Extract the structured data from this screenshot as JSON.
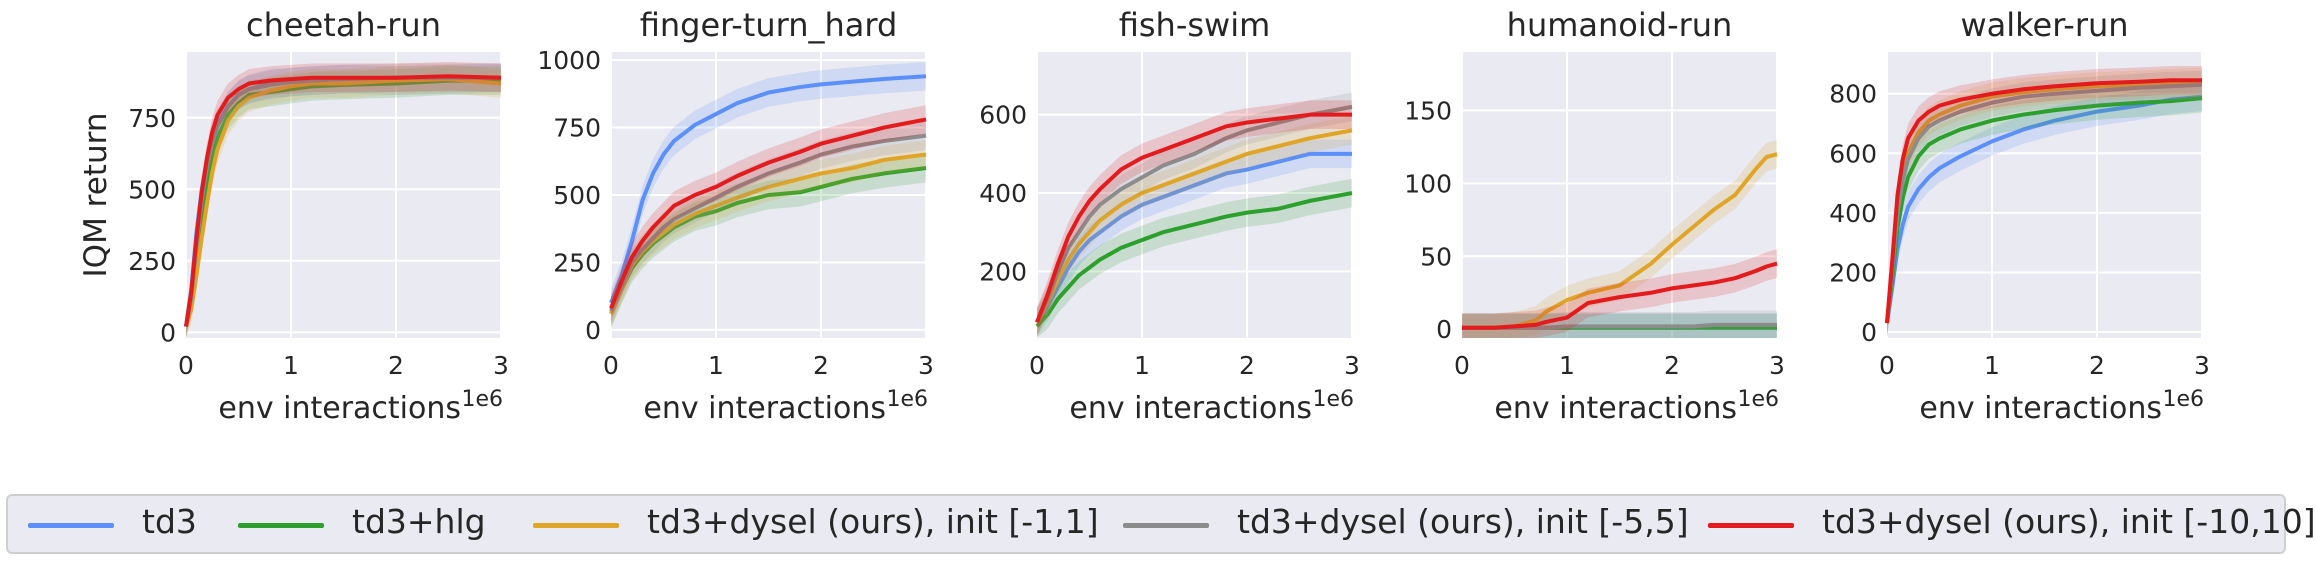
{
  "colors": {
    "td3": "#5b8ff9",
    "td3+hlg": "#2ca02c",
    "td3+dysel (ours), init [-1,1]": "#e0a526",
    "td3+dysel (ours), init [-5,5]": "#8c8c8c",
    "td3+dysel (ours), init [-10,10]": "#e41a1c",
    "panel_bg": "#eaeaf2",
    "grid": "#ffffff",
    "text": "#262626"
  },
  "legend": {
    "items": [
      {
        "label": "td3"
      },
      {
        "label": "td3+hlg"
      },
      {
        "label": "td3+dysel (ours), init [-1,1]"
      },
      {
        "label": "td3+dysel (ours), init [-5,5]"
      },
      {
        "label": "td3+dysel (ours), init [-10,10]"
      }
    ]
  },
  "chart_data": [
    {
      "type": "line",
      "title": "cheetah-run",
      "xlabel": "env interactions",
      "xscale_label": "1e6",
      "ylabel": "IQM return",
      "xlim": [
        0,
        3
      ],
      "ylim": [
        -20,
        980
      ],
      "xticks": [
        0,
        1,
        2,
        3
      ],
      "yticks": [
        0,
        250,
        500,
        750
      ],
      "grid": true,
      "x": [
        0,
        0.05,
        0.1,
        0.15,
        0.2,
        0.25,
        0.3,
        0.4,
        0.5,
        0.6,
        0.8,
        1.0,
        1.2,
        1.5,
        2.0,
        2.5,
        3.0
      ],
      "series": [
        {
          "name": "td3",
          "values": [
            20,
            150,
            350,
            500,
            600,
            680,
            730,
            790,
            830,
            850,
            870,
            875,
            880,
            885,
            880,
            885,
            890
          ]
        },
        {
          "name": "td3+hlg",
          "values": [
            20,
            100,
            250,
            400,
            520,
            610,
            680,
            760,
            800,
            830,
            840,
            850,
            860,
            865,
            870,
            880,
            880
          ]
        },
        {
          "name": "td3+dysel (ours), init [-1,1]",
          "values": [
            20,
            80,
            200,
            330,
            450,
            560,
            640,
            740,
            790,
            820,
            845,
            860,
            870,
            870,
            880,
            885,
            870
          ]
        },
        {
          "name": "td3+dysel (ours), init [-5,5]",
          "values": [
            20,
            120,
            300,
            460,
            580,
            660,
            720,
            790,
            830,
            850,
            865,
            875,
            880,
            885,
            890,
            890,
            890
          ]
        },
        {
          "name": "td3+dysel (ours), init [-10,10]",
          "values": [
            20,
            140,
            330,
            490,
            610,
            700,
            760,
            820,
            850,
            870,
            880,
            885,
            890,
            890,
            890,
            895,
            890
          ]
        }
      ]
    },
    {
      "type": "line",
      "title": "finger-turn_hard",
      "xlabel": "env interactions",
      "xscale_label": "1e6",
      "ylabel": "",
      "xlim": [
        0,
        3
      ],
      "ylim": [
        -30,
        1030
      ],
      "xticks": [
        0,
        1,
        2,
        3
      ],
      "yticks": [
        0,
        250,
        500,
        750,
        1000
      ],
      "grid": true,
      "x": [
        0,
        0.1,
        0.2,
        0.3,
        0.4,
        0.5,
        0.6,
        0.8,
        1.0,
        1.2,
        1.5,
        1.8,
        2.0,
        2.3,
        2.6,
        3.0
      ],
      "series": [
        {
          "name": "td3",
          "values": [
            100,
            200,
            330,
            480,
            580,
            650,
            700,
            760,
            800,
            840,
            880,
            900,
            910,
            920,
            930,
            940
          ]
        },
        {
          "name": "td3+hlg",
          "values": [
            60,
            150,
            230,
            280,
            320,
            350,
            380,
            420,
            440,
            470,
            500,
            510,
            530,
            560,
            580,
            600
          ]
        },
        {
          "name": "td3+dysel (ours), init [-1,1]",
          "values": [
            60,
            150,
            240,
            290,
            330,
            360,
            390,
            430,
            460,
            490,
            530,
            560,
            580,
            600,
            630,
            650
          ]
        },
        {
          "name": "td3+dysel (ours), init [-5,5]",
          "values": [
            70,
            160,
            250,
            300,
            340,
            380,
            410,
            450,
            490,
            530,
            580,
            620,
            650,
            680,
            700,
            720
          ]
        },
        {
          "name": "td3+dysel (ours), init [-10,10]",
          "values": [
            80,
            180,
            270,
            330,
            380,
            420,
            460,
            500,
            530,
            570,
            620,
            660,
            690,
            720,
            750,
            780
          ]
        }
      ]
    },
    {
      "type": "line",
      "title": "fish-swim",
      "xlabel": "env interactions",
      "xscale_label": "1e6",
      "ylabel": "",
      "xlim": [
        0,
        3
      ],
      "ylim": [
        30,
        760
      ],
      "xticks": [
        0,
        1,
        2,
        3
      ],
      "yticks": [
        200,
        400,
        600
      ],
      "grid": true,
      "x": [
        0,
        0.1,
        0.2,
        0.3,
        0.4,
        0.5,
        0.6,
        0.8,
        1.0,
        1.2,
        1.5,
        1.8,
        2.0,
        2.3,
        2.6,
        3.0
      ],
      "series": [
        {
          "name": "td3",
          "values": [
            70,
            110,
            160,
            210,
            250,
            280,
            300,
            340,
            370,
            390,
            420,
            450,
            460,
            480,
            500,
            500
          ]
        },
        {
          "name": "td3+hlg",
          "values": [
            60,
            90,
            130,
            160,
            190,
            210,
            230,
            260,
            280,
            300,
            320,
            340,
            350,
            360,
            380,
            400
          ]
        },
        {
          "name": "td3+dysel (ours), init [-1,1]",
          "values": [
            70,
            120,
            180,
            230,
            270,
            300,
            330,
            370,
            400,
            420,
            450,
            480,
            500,
            520,
            540,
            560
          ]
        },
        {
          "name": "td3+dysel (ours), init [-5,5]",
          "values": [
            70,
            130,
            200,
            260,
            300,
            340,
            370,
            410,
            440,
            470,
            500,
            540,
            560,
            580,
            600,
            620
          ]
        },
        {
          "name": "td3+dysel (ours), init [-10,10]",
          "values": [
            70,
            140,
            220,
            290,
            340,
            380,
            410,
            460,
            490,
            510,
            540,
            570,
            580,
            590,
            600,
            600
          ]
        }
      ]
    },
    {
      "type": "line",
      "title": "humanoid-run",
      "xlabel": "env interactions",
      "xscale_label": "1e6",
      "ylabel": "",
      "xlim": [
        0,
        3
      ],
      "ylim": [
        -6,
        190
      ],
      "xticks": [
        0,
        1,
        2,
        3
      ],
      "yticks": [
        0,
        50,
        100,
        150
      ],
      "grid": true,
      "x": [
        0,
        0.3,
        0.5,
        0.7,
        0.8,
        1.0,
        1.2,
        1.5,
        1.8,
        2.0,
        2.2,
        2.4,
        2.6,
        2.8,
        2.9,
        3.0
      ],
      "series": [
        {
          "name": "td3",
          "values": [
            1,
            1,
            1,
            1,
            1,
            1,
            1,
            1,
            1,
            1,
            1,
            1,
            1,
            1,
            1,
            1
          ]
        },
        {
          "name": "td3+hlg",
          "values": [
            1,
            1,
            1,
            1,
            1,
            1,
            1,
            1,
            1,
            1,
            1,
            1,
            1,
            1,
            1,
            1
          ]
        },
        {
          "name": "td3+dysel (ours), init [-1,1]",
          "values": [
            1,
            1,
            2,
            6,
            12,
            20,
            25,
            30,
            45,
            58,
            70,
            82,
            92,
            110,
            118,
            120
          ]
        },
        {
          "name": "td3+dysel (ours), init [-5,5]",
          "values": [
            1,
            1,
            1,
            1,
            1,
            2,
            2,
            2,
            2,
            2,
            2,
            3,
            3,
            3,
            3,
            3
          ]
        },
        {
          "name": "td3+dysel (ours), init [-10,10]",
          "values": [
            1,
            1,
            2,
            3,
            5,
            8,
            18,
            22,
            25,
            28,
            30,
            32,
            35,
            40,
            43,
            45
          ]
        }
      ]
    },
    {
      "type": "line",
      "title": "walker-run",
      "xlabel": "env interactions",
      "xscale_label": "1e6",
      "ylabel": "",
      "xlim": [
        0,
        3
      ],
      "ylim": [
        -20,
        940
      ],
      "xticks": [
        0,
        1,
        2,
        3
      ],
      "yticks": [
        0,
        200,
        400,
        600,
        800
      ],
      "grid": true,
      "x": [
        0,
        0.05,
        0.1,
        0.15,
        0.2,
        0.3,
        0.4,
        0.5,
        0.7,
        1.0,
        1.3,
        1.6,
        2.0,
        2.4,
        2.7,
        3.0
      ],
      "series": [
        {
          "name": "td3",
          "values": [
            30,
            150,
            280,
            360,
            420,
            480,
            520,
            550,
            590,
            640,
            680,
            710,
            740,
            760,
            780,
            790
          ]
        },
        {
          "name": "td3+hlg",
          "values": [
            30,
            180,
            350,
            450,
            520,
            590,
            630,
            650,
            680,
            710,
            730,
            745,
            760,
            770,
            775,
            785
          ]
        },
        {
          "name": "td3+dysel (ours), init [-1,1]",
          "values": [
            30,
            220,
            420,
            530,
            600,
            670,
            710,
            730,
            760,
            790,
            805,
            815,
            825,
            830,
            835,
            840
          ]
        },
        {
          "name": "td3+dysel (ours), init [-5,5]",
          "values": [
            30,
            210,
            400,
            510,
            580,
            650,
            690,
            710,
            740,
            770,
            790,
            800,
            810,
            820,
            825,
            830
          ]
        },
        {
          "name": "td3+dysel (ours), init [-10,10]",
          "values": [
            30,
            240,
            460,
            580,
            650,
            710,
            740,
            760,
            780,
            800,
            815,
            825,
            835,
            840,
            845,
            845
          ]
        }
      ]
    }
  ]
}
